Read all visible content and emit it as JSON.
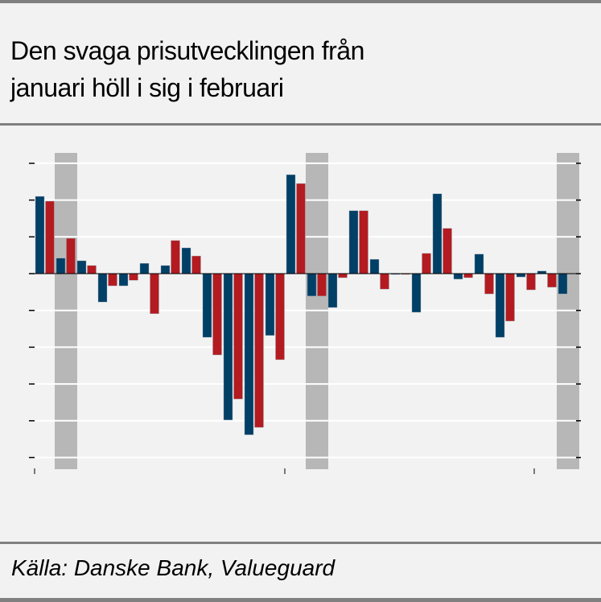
{
  "title": [
    "Den svaga prisutvecklingen från",
    "januari höll i sig i februari"
  ],
  "source": "Källa: Danske Bank, Valueguard",
  "colors": {
    "series_a": "#003f66",
    "series_b": "#b31b20",
    "shade": "#b7b7b7",
    "grid": "#ffffff"
  },
  "chart_data": {
    "type": "bar",
    "ylim": [
      -5,
      3
    ],
    "grid": true,
    "shaded_periods": [
      1,
      13,
      25
    ],
    "series": [
      {
        "color": "#003f66",
        "values": [
          2.1,
          0.42,
          0.35,
          -0.77,
          -0.33,
          0.28,
          0.22,
          0.7,
          -1.73,
          -3.98,
          -4.38,
          -1.68,
          2.69,
          -0.61,
          -0.92,
          1.71,
          0.39,
          0.0,
          -1.05,
          2.17,
          -0.15,
          0.53,
          -1.73,
          -0.09,
          0.07,
          -0.55
        ]
      },
      {
        "color": "#b31b20",
        "values": [
          1.97,
          0.96,
          0.22,
          -0.33,
          -0.18,
          -1.09,
          0.9,
          0.48,
          -2.21,
          -3.41,
          -4.18,
          -2.34,
          2.45,
          -0.61,
          -0.11,
          1.71,
          -0.42,
          -0.02,
          0.55,
          1.23,
          -0.11,
          -0.55,
          -1.29,
          -0.44,
          -0.37,
          null
        ]
      }
    ]
  }
}
